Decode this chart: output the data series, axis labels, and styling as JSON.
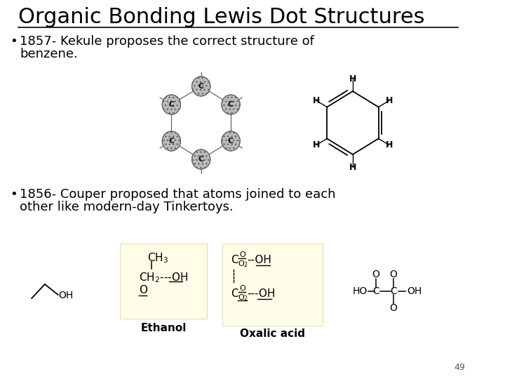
{
  "title": "Organic Bonding Lewis Dot Structures",
  "slide_bg": "#ffffff",
  "bullet1_line1": "1857- Kekule proposes the correct structure of",
  "bullet1_line2": "benzene.",
  "bullet2_line1": "1856- Couper proposed that atoms joined to each",
  "bullet2_line2": "other like modern-day Tinkertoys.",
  "label_ethanol": "Ethanol",
  "label_oxalic": "Oxalic acid",
  "page_number": "49",
  "title_fontsize": 22,
  "bullet_fontsize": 13,
  "label_fontsize": 11
}
